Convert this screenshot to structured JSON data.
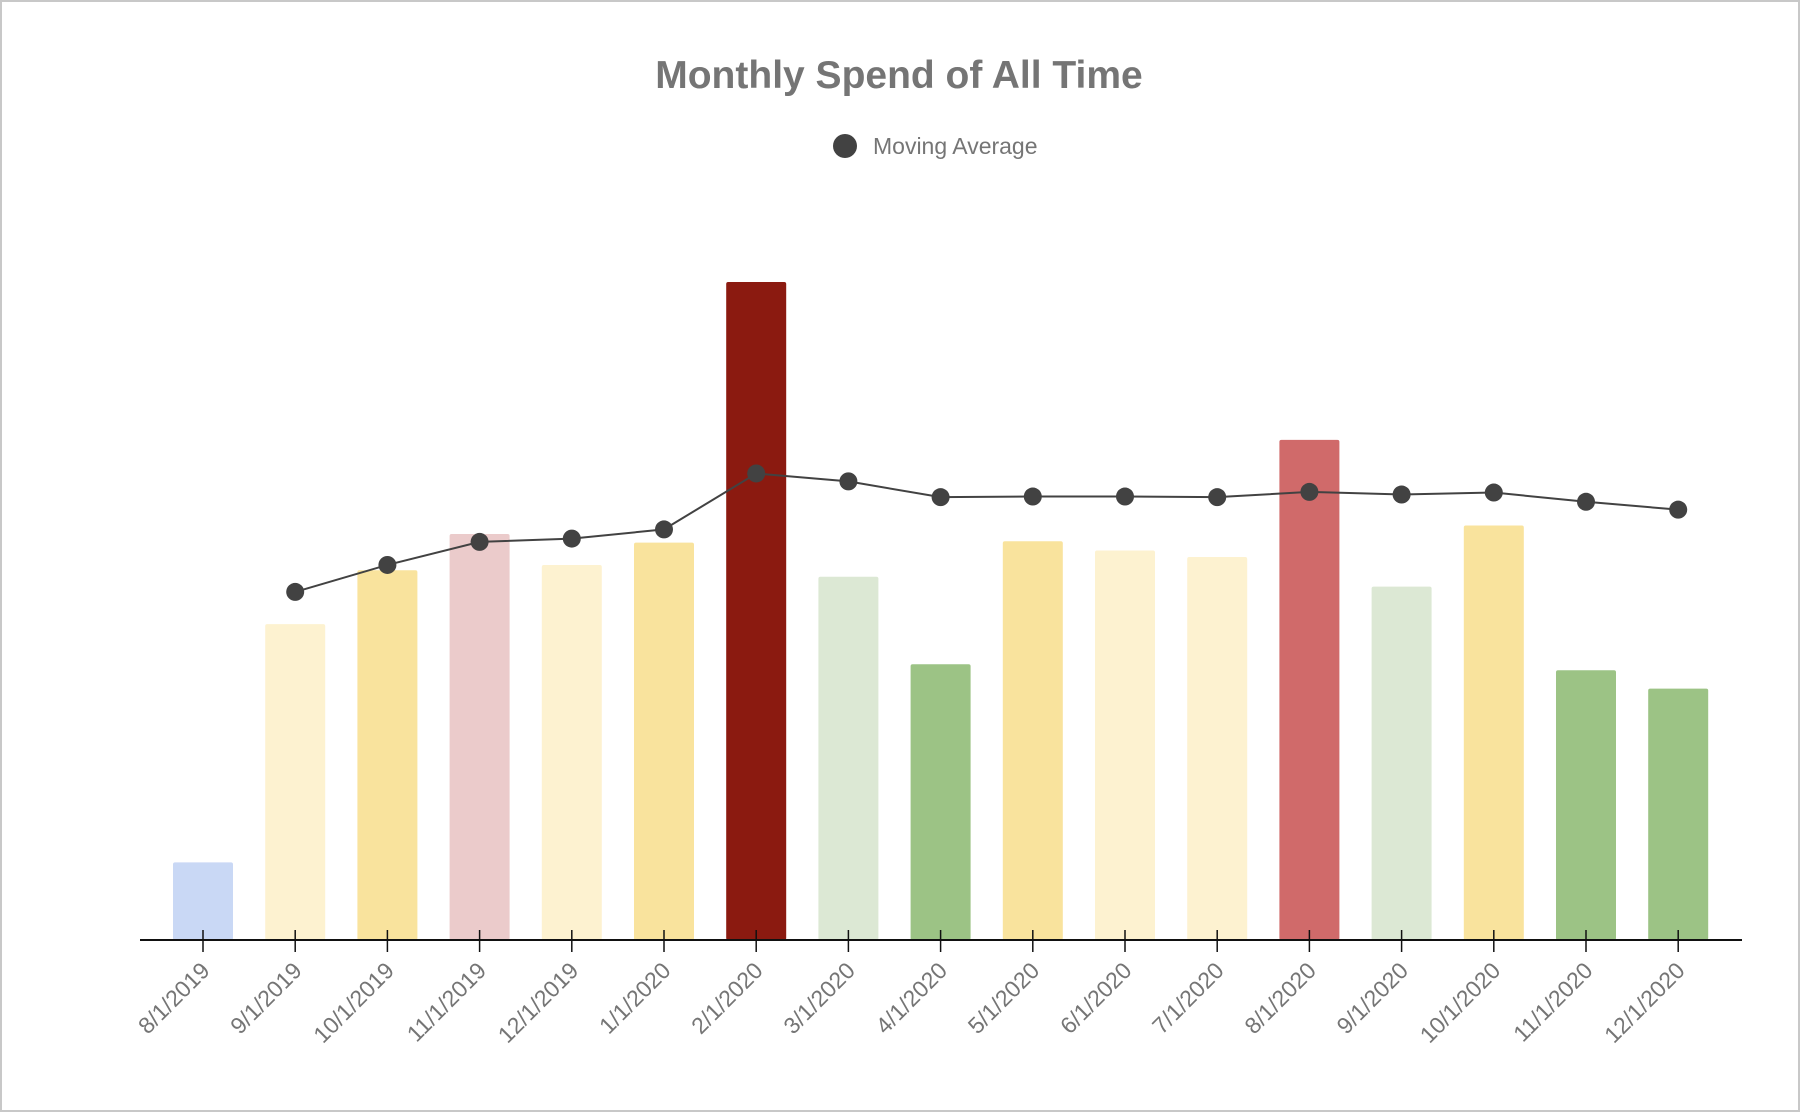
{
  "chart_data": {
    "type": "bar",
    "title": "Monthly Spend of All Time",
    "xlabel": "",
    "ylabel": "",
    "ylim": [
      0,
      1000
    ],
    "grid": false,
    "legend_position": "top-center",
    "categories": [
      "8/1/2019",
      "9/1/2019",
      "10/1/2019",
      "11/1/2019",
      "12/1/2019",
      "1/1/2020",
      "2/1/2020",
      "3/1/2020",
      "4/1/2020",
      "5/1/2020",
      "6/1/2020",
      "7/1/2020",
      "8/1/2020",
      "9/1/2020",
      "10/1/2020",
      "11/1/2020",
      "12/1/2020"
    ],
    "values": [
      118,
      480,
      562,
      617,
      570,
      604,
      1000,
      552,
      419,
      606,
      592,
      582,
      760,
      537,
      630,
      410,
      382
    ],
    "bar_colors": [
      "#c9d8f5",
      "#fdf2d0",
      "#f9e39d",
      "#ebcbcb",
      "#fdf2d0",
      "#f9e39d",
      "#8b1a10",
      "#dce8d4",
      "#9cc385",
      "#f9e39d",
      "#fdf2d0",
      "#fdf2d0",
      "#d06a6a",
      "#dce8d4",
      "#f9e39d",
      "#9cc385",
      "#9cc385"
    ],
    "series": [
      {
        "name": "Moving Average",
        "type": "line",
        "color": "#424242",
        "values": [
          null,
          529,
          570,
          605,
          610,
          624,
          709,
          697,
          673,
          674,
          674,
          673,
          681,
          677,
          680,
          666,
          654
        ]
      }
    ],
    "legend": [
      {
        "label": "Moving Average",
        "marker": "filled-circle",
        "color": "#424242"
      }
    ]
  }
}
